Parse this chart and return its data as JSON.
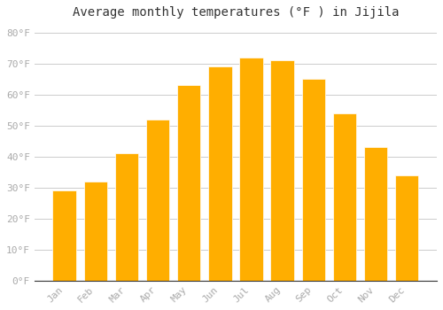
{
  "title": "Average monthly temperatures (°F ) in Jijila",
  "months": [
    "Jan",
    "Feb",
    "Mar",
    "Apr",
    "May",
    "Jun",
    "Jul",
    "Aug",
    "Sep",
    "Oct",
    "Nov",
    "Dec"
  ],
  "values": [
    29,
    32,
    41,
    52,
    63,
    69,
    72,
    71,
    65,
    54,
    43,
    34
  ],
  "bar_color": "#FFAE00",
  "bar_edge_color": "#F0A000",
  "background_color": "#FFFFFF",
  "grid_color": "#CCCCCC",
  "tick_label_color": "#AAAAAA",
  "title_color": "#333333",
  "ylim": [
    0,
    83
  ],
  "yticks": [
    0,
    10,
    20,
    30,
    40,
    50,
    60,
    70,
    80
  ],
  "ytick_labels": [
    "0°F",
    "10°F",
    "20°F",
    "30°F",
    "40°F",
    "50°F",
    "60°F",
    "70°F",
    "80°F"
  ],
  "title_fontsize": 10,
  "tick_fontsize": 8
}
